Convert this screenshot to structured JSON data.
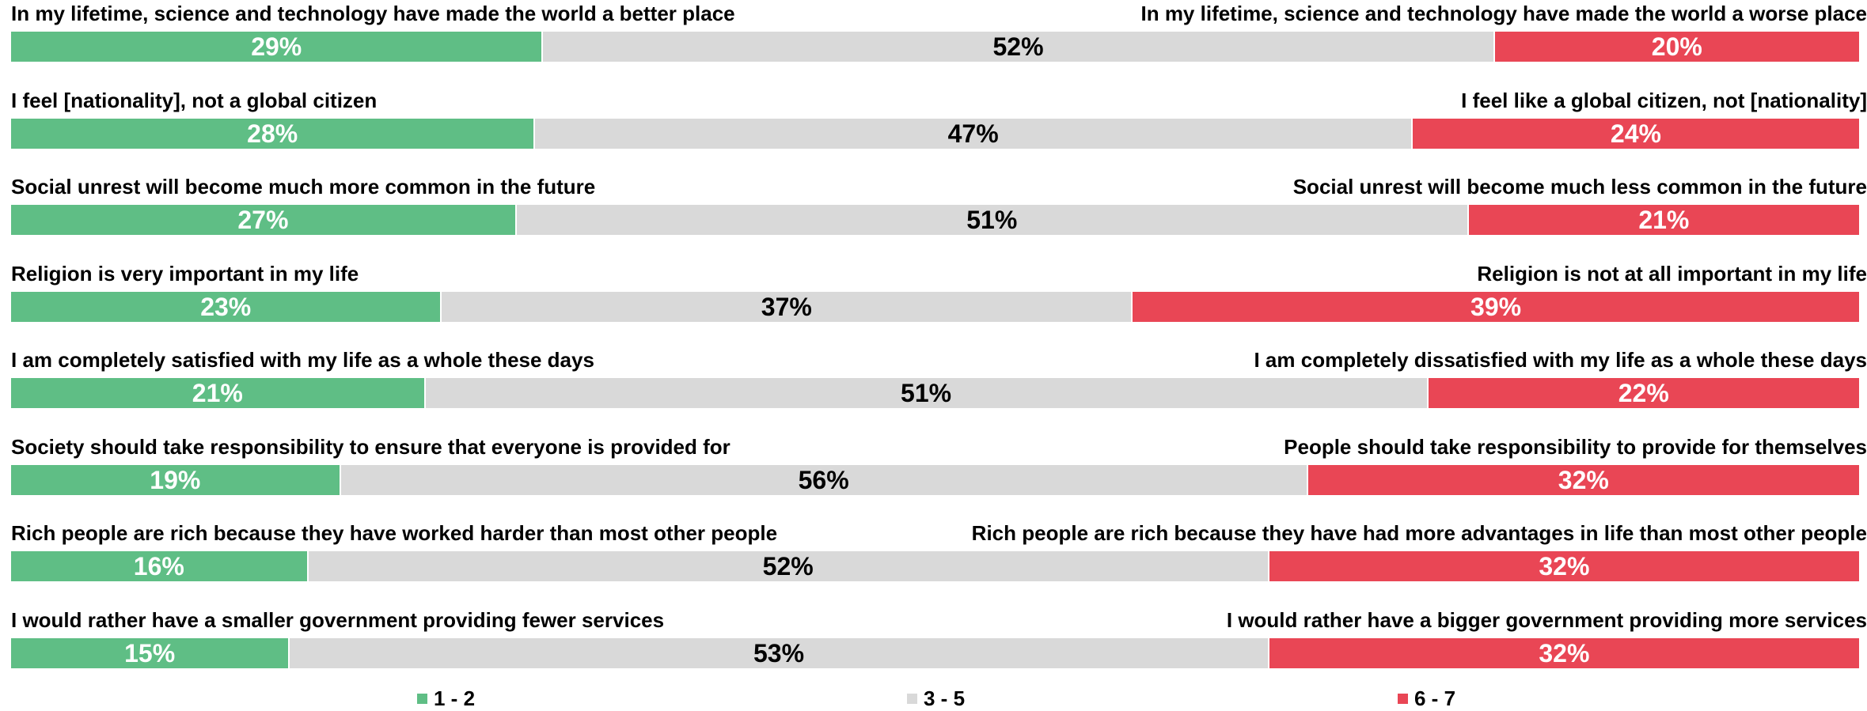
{
  "chart_data": {
    "type": "bar",
    "orientation": "horizontal",
    "stacked": true,
    "series": [
      {
        "name": "1 - 2",
        "color": "#5fbe85"
      },
      {
        "name": "3 - 5",
        "color": "#d9d9d9"
      },
      {
        "name": "6 - 7",
        "color": "#e94655"
      }
    ],
    "rows": [
      {
        "left_label": "In my lifetime, science and technology have made the world a better place",
        "right_label": "In my lifetime, science and technology have made the world a worse place",
        "values": [
          29,
          52,
          20
        ],
        "value_labels": [
          "29%",
          "52%",
          "20%"
        ]
      },
      {
        "left_label": "I feel [nationality], not a global citizen",
        "right_label": "I feel like a global citizen, not [nationality]",
        "values": [
          28,
          47,
          24
        ],
        "value_labels": [
          "28%",
          "47%",
          "24%"
        ]
      },
      {
        "left_label": "Social unrest will become much more common in the future",
        "right_label": "Social unrest will become much less common in the future",
        "values": [
          27,
          51,
          21
        ],
        "value_labels": [
          "27%",
          "51%",
          "21%"
        ]
      },
      {
        "left_label": "Religion is very important in my life",
        "right_label": "Religion is not at all important in my life",
        "values": [
          23,
          37,
          39
        ],
        "value_labels": [
          "23%",
          "37%",
          "39%"
        ]
      },
      {
        "left_label": "I am completely satisfied with my life as a whole these days",
        "right_label": "I am completely dissatisfied with my life as a whole these days",
        "values": [
          21,
          51,
          22
        ],
        "value_labels": [
          "21%",
          "51%",
          "22%"
        ]
      },
      {
        "left_label": "Society should take responsibility to ensure that everyone is provided for",
        "right_label": "People should take responsibility to provide for themselves",
        "values": [
          19,
          56,
          32
        ],
        "value_labels": [
          "19%",
          "56%",
          "32%"
        ]
      },
      {
        "left_label": "Rich people are rich because they have worked harder than most other people",
        "right_label": "Rich people are rich because they have had more advantages in life than most other people",
        "values": [
          16,
          52,
          32
        ],
        "value_labels": [
          "16%",
          "52%",
          "32%"
        ]
      },
      {
        "left_label": "I would rather have a smaller government providing fewer services",
        "right_label": "I would rather have a bigger government providing more services",
        "values": [
          15,
          53,
          32
        ],
        "value_labels": [
          "15%",
          "53%",
          "32%"
        ]
      }
    ],
    "legend_position": "bottom",
    "grid": false
  }
}
